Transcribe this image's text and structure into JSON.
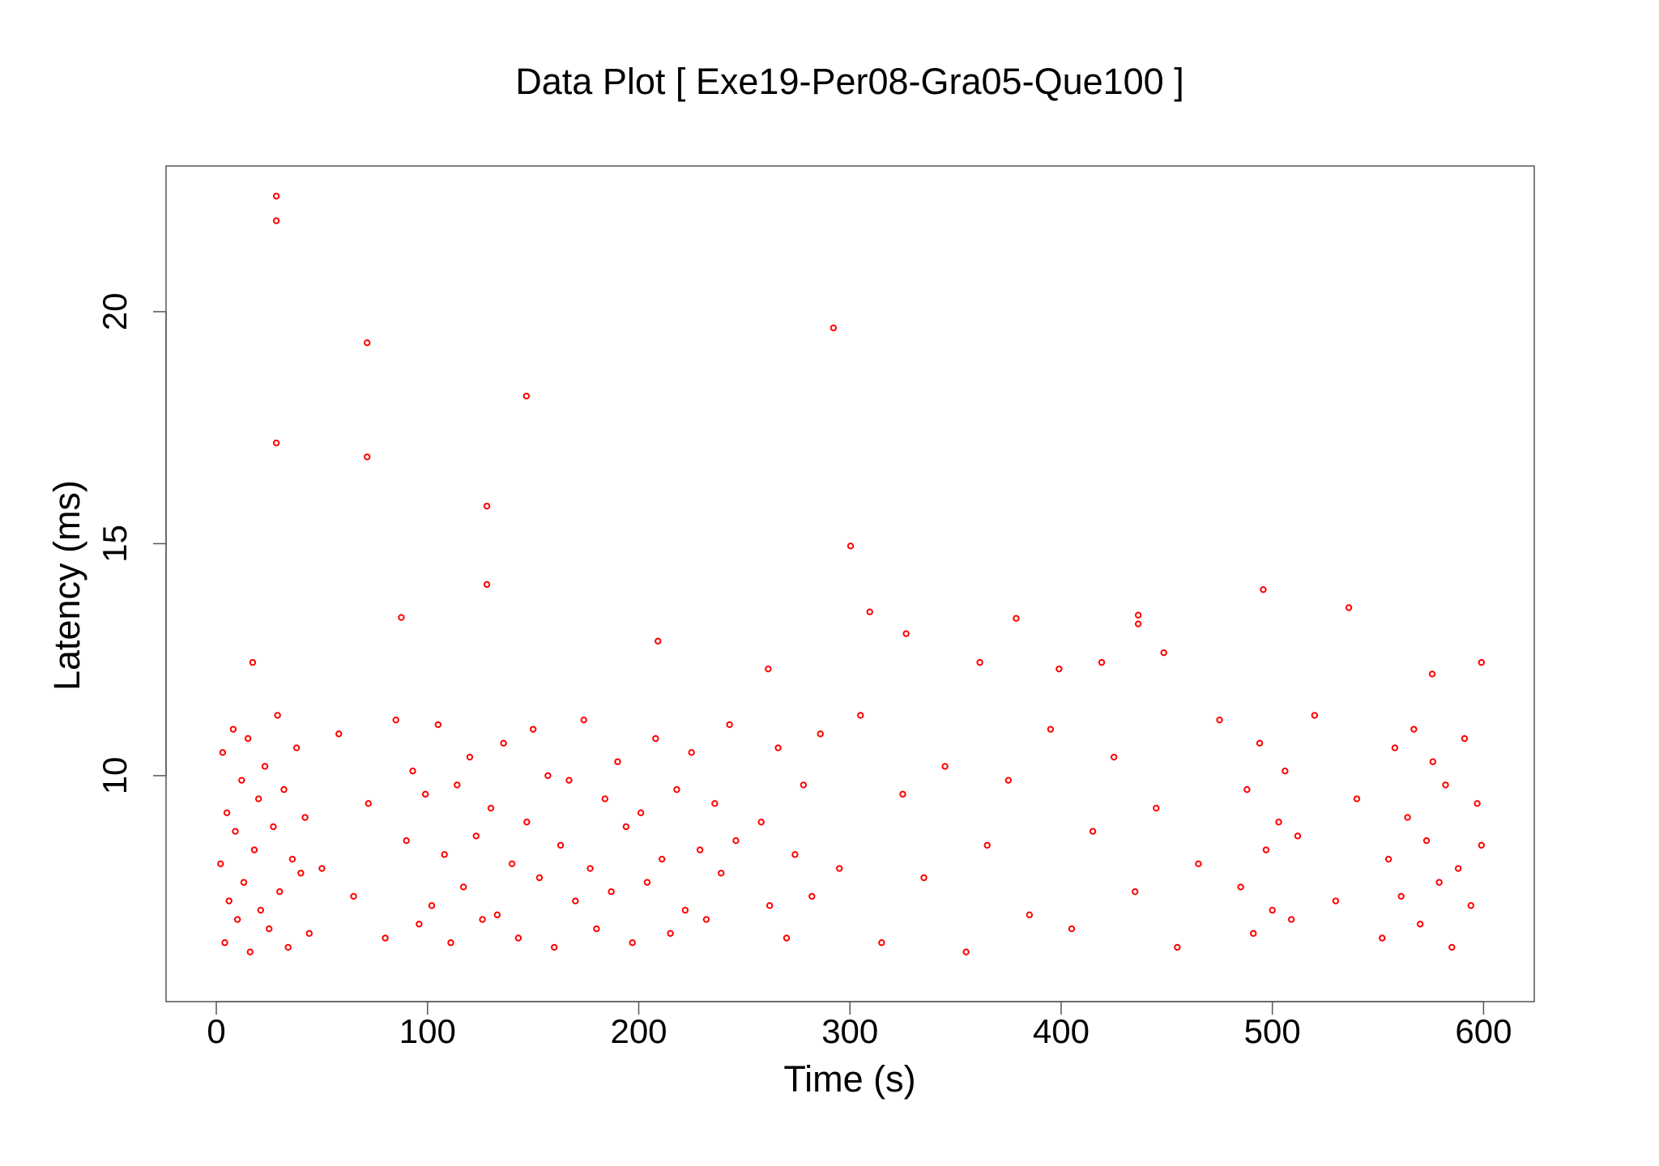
{
  "chart_data": {
    "type": "scatter",
    "title": "Data Plot [ Exe19-Per08-Gra05-Que100 ]",
    "x_label": "Time (s)",
    "y_label": "Latency (ms)",
    "color": "#ff0000",
    "xlim": [
      -23.8,
      624
    ],
    "ylim": [
      5.13,
      23.14
    ],
    "xticks": [
      0,
      100,
      200,
      300,
      400,
      500,
      600
    ],
    "yticks": [
      10,
      15,
      20
    ],
    "x": [
      28.4,
      28.4,
      28.4,
      71.4,
      71.4,
      87.6,
      128.1,
      128.1,
      146.8,
      292.2,
      300.3,
      309.4,
      326.6,
      378.7,
      495.7,
      536.2,
      436.5,
      436.5,
      448.6,
      209.1,
      361.5,
      399,
      419.2,
      599,
      17.2,
      261.3,
      575.7,
      2,
      3,
      4,
      5,
      6,
      8,
      9,
      10,
      12,
      13,
      15,
      16,
      18,
      20,
      21,
      23,
      25,
      27,
      29,
      30,
      32,
      34,
      36,
      38,
      40,
      42,
      44,
      50,
      58,
      65,
      72,
      80,
      85,
      90,
      93,
      96,
      99,
      102,
      105,
      108,
      111,
      114,
      117,
      120,
      123,
      126,
      130,
      133,
      136,
      140,
      143,
      147,
      150,
      153,
      157,
      160,
      163,
      167,
      170,
      174,
      177,
      180,
      184,
      187,
      190,
      194,
      197,
      201,
      204,
      208,
      211,
      215,
      218,
      222,
      225,
      229,
      232,
      236,
      239,
      243,
      246,
      258,
      262,
      266,
      270,
      274,
      278,
      282,
      286,
      295,
      305,
      315,
      325,
      335,
      345,
      355,
      365,
      375,
      385,
      395,
      405,
      415,
      425,
      435,
      445,
      455,
      465,
      475,
      485,
      488,
      491,
      494,
      497,
      500,
      503,
      506,
      509,
      512,
      520,
      530,
      540,
      552,
      555,
      558,
      561,
      564,
      567,
      570,
      573,
      576,
      579,
      582,
      585,
      588,
      591,
      594,
      597,
      599
    ],
    "values": [
      22.49,
      21.96,
      17.17,
      19.33,
      16.87,
      13.41,
      15.81,
      14.12,
      18.18,
      19.65,
      14.95,
      13.53,
      13.06,
      13.39,
      14.01,
      13.62,
      13.46,
      13.27,
      12.65,
      12.9,
      12.44,
      12.3,
      12.44,
      12.44,
      12.44,
      12.3,
      12.19,
      8.1,
      10.5,
      6.4,
      9.2,
      7.3,
      11.0,
      8.8,
      6.9,
      9.9,
      7.7,
      10.8,
      6.2,
      8.4,
      9.5,
      7.1,
      10.2,
      6.7,
      8.9,
      11.3,
      7.5,
      9.7,
      6.3,
      8.2,
      10.6,
      7.9,
      9.1,
      6.6,
      8.0,
      10.9,
      7.4,
      9.4,
      6.5,
      11.2,
      8.6,
      10.1,
      6.8,
      9.6,
      7.2,
      11.1,
      8.3,
      6.4,
      9.8,
      7.6,
      10.4,
      8.7,
      6.9,
      9.3,
      7.0,
      10.7,
      8.1,
      6.5,
      9.0,
      11.0,
      7.8,
      10.0,
      6.3,
      8.5,
      9.9,
      7.3,
      11.2,
      8.0,
      6.7,
      9.5,
      7.5,
      10.3,
      8.9,
      6.4,
      9.2,
      7.7,
      10.8,
      8.2,
      6.6,
      9.7,
      7.1,
      10.5,
      8.4,
      6.9,
      9.4,
      7.9,
      11.1,
      8.6,
      9.0,
      7.2,
      10.6,
      6.5,
      8.3,
      9.8,
      7.4,
      10.9,
      8.0,
      11.3,
      6.4,
      9.6,
      7.8,
      10.2,
      6.2,
      8.5,
      9.9,
      7.0,
      11.0,
      6.7,
      8.8,
      10.4,
      7.5,
      9.3,
      6.3,
      8.1,
      11.2,
      7.6,
      9.7,
      6.6,
      10.7,
      8.4,
      7.1,
      9.0,
      10.1,
      6.9,
      8.7,
      11.3,
      7.3,
      9.5,
      6.5,
      8.2,
      10.6,
      7.4,
      9.1,
      11.0,
      6.8,
      8.6,
      10.3,
      7.7,
      9.8,
      6.3,
      8.0,
      10.8,
      7.2,
      9.4,
      8.5
    ]
  }
}
